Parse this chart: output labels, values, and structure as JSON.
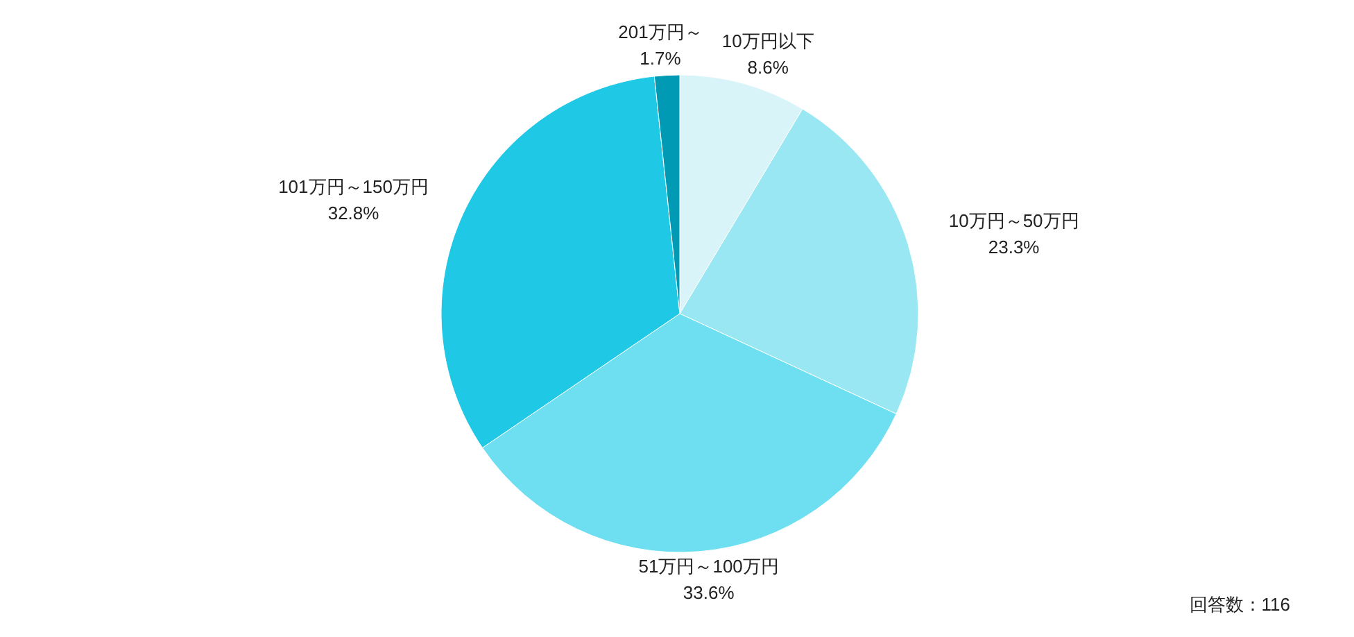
{
  "chart_data": {
    "type": "pie",
    "categories": [
      "10万円以下",
      "10万円～50万円",
      "51万円～100万円",
      "101万円～150万円",
      "201万円～"
    ],
    "values": [
      8.6,
      23.3,
      33.6,
      32.8,
      1.7
    ],
    "value_labels": [
      "8.6%",
      "23.3%",
      "33.6%",
      "32.8%",
      "1.7%"
    ],
    "colors": [
      "#d8f4f9",
      "#9ae7f4",
      "#6edff1",
      "#1fc9e5",
      "#009ab4"
    ],
    "annotations": [
      "回答数：116"
    ]
  }
}
